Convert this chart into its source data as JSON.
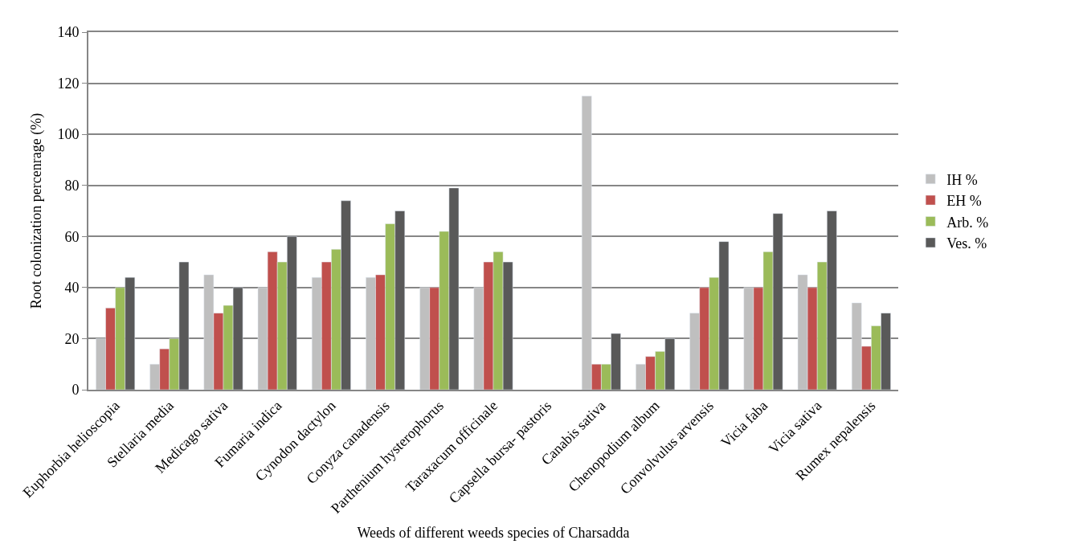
{
  "chart_data": {
    "type": "bar",
    "xlabel": "Weeds of different weeds species of Charsadda",
    "ylabel": "Root colonization percenrage (%)",
    "categories": [
      "Euphorbia helioscopia",
      "Stellaria media",
      "Medicago sativa",
      "Fumaria indica",
      "Cynodon dactylon",
      "Conyza canadensis",
      "Parthenium hysterophorus",
      "Taraxacum officinale",
      "Capsella bursa- pastoris",
      "Canabis sativa",
      "Chenopodium album",
      "Convolvulus arvensis",
      "Vicia faba",
      "Vicia sativa",
      "Rumex nepalensis"
    ],
    "series": [
      {
        "name": "IH %",
        "color": "#bfbfbf",
        "values": [
          20,
          10,
          45,
          40,
          44,
          44,
          40,
          40,
          null,
          115,
          10,
          30,
          40,
          45,
          34
        ]
      },
      {
        "name": "EH %",
        "color": "#c0504d",
        "values": [
          32,
          16,
          30,
          54,
          50,
          45,
          40,
          50,
          null,
          10,
          13,
          40,
          40,
          40,
          17
        ]
      },
      {
        "name": "Arb. %",
        "color": "#9bbb59",
        "values": [
          40,
          20,
          33,
          50,
          55,
          65,
          62,
          54,
          null,
          10,
          15,
          44,
          54,
          50,
          25
        ]
      },
      {
        "name": "Ves. %",
        "color": "#595959",
        "values": [
          44,
          50,
          40,
          60,
          74,
          70,
          79,
          50,
          null,
          22,
          20,
          58,
          69,
          70,
          30
        ]
      }
    ],
    "ylim": [
      0,
      140
    ],
    "yticks": [
      0,
      20,
      40,
      60,
      80,
      100,
      120,
      140
    ],
    "grid": "y",
    "legend": "right"
  }
}
